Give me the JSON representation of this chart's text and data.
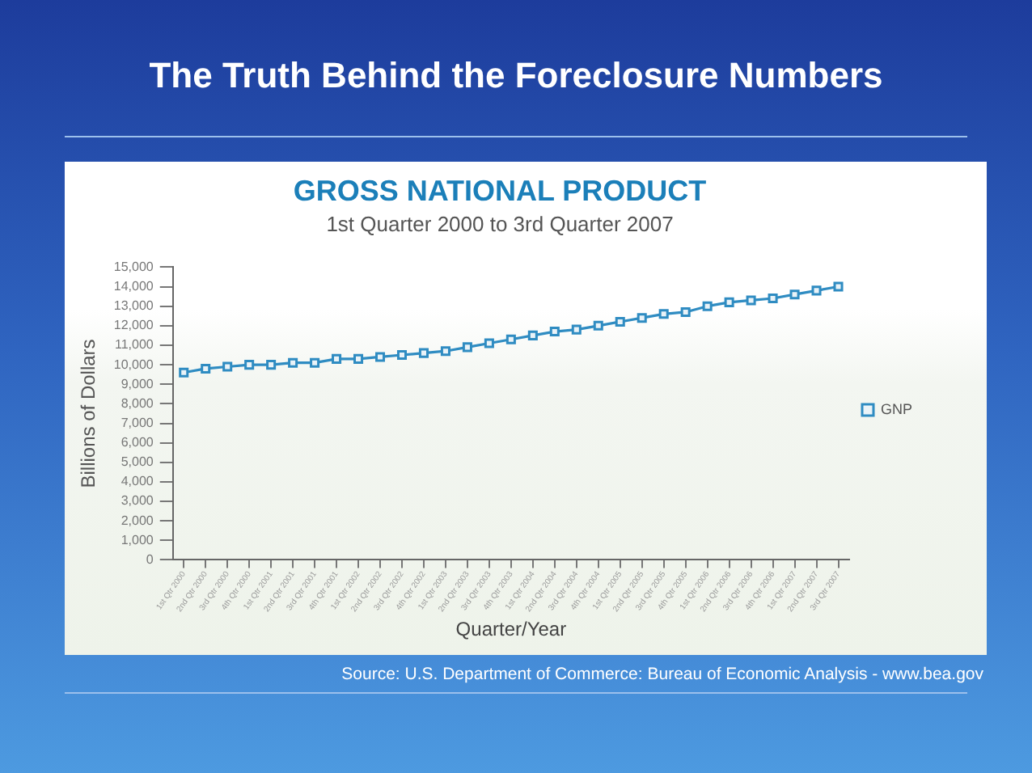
{
  "chart_data": {
    "type": "line",
    "title": "GROSS NATIONAL PRODUCT",
    "subtitle": "1st Quarter 2000 to 3rd Quarter 2007",
    "xlabel": "Quarter/Year",
    "ylabel": "Billions of Dollars",
    "annotations": [
      "The Truth Behind the Foreclosure Numbers",
      "Source: U.S. Department of Commerce: Bureau of Economic Analysis - www.bea.gov"
    ],
    "categories": [
      "1st Qtr 2000",
      "2nd Qtr 2000",
      "3rd Qtr 2000",
      "4th Qtr 2000",
      "1st Qtr 2001",
      "2nd Qtr 2001",
      "3rd Qtr 2001",
      "4th Qtr 2001",
      "1st Qtr 2002",
      "2nd Qtr 2002",
      "3rd Qtr 2002",
      "4th Qtr 2002",
      "1st Qtr 2003",
      "2nd Qtr 2003",
      "3rd Qtr 2003",
      "4th Qtr 2003",
      "1st Qtr 2004",
      "2nd Qtr 2004",
      "3rd Qtr 2004",
      "4th Qtr 2004",
      "1st Qtr 2005",
      "2nd Qtr 2005",
      "3rd Qtr 2005",
      "4th Qtr 2005",
      "1st Qtr 2006",
      "2nd Qtr 2006",
      "3rd Qtr 2006",
      "4th Qtr 2006",
      "1st Qtr 2007",
      "2nd Qtr 2007",
      "3rd Qtr 2007"
    ],
    "series": [
      {
        "name": "GNP",
        "color": "#2f8cc2",
        "values": [
          9600,
          9800,
          9900,
          10000,
          10000,
          10100,
          10100,
          10300,
          10300,
          10400,
          10500,
          10600,
          10700,
          10900,
          11100,
          11300,
          11500,
          11700,
          11800,
          12000,
          12200,
          12400,
          12600,
          12700,
          13000,
          13200,
          13300,
          13400,
          13600,
          13800,
          14000
        ]
      }
    ],
    "ylim": [
      0,
      15000
    ],
    "yticks": [
      0,
      {
        "value": 1000,
        "label": "1,000"
      },
      {
        "value": 2000,
        "label": "2,000"
      },
      {
        "value": 3000,
        "label": "3,000"
      },
      {
        "value": 4000,
        "label": "4,000"
      },
      {
        "value": 5000,
        "label": "5,000"
      },
      {
        "value": 6000,
        "label": "6,000"
      },
      {
        "value": 7000,
        "label": "7,000"
      },
      {
        "value": 8000,
        "label": "8,000"
      },
      {
        "value": 9000,
        "label": "9,000"
      },
      {
        "value": 10000,
        "label": "10,000"
      },
      {
        "value": 11000,
        "label": "11,000"
      },
      {
        "value": 12000,
        "label": "12,000"
      },
      {
        "value": 13000,
        "label": "13,000"
      },
      {
        "value": 14000,
        "label": "14,000"
      },
      {
        "value": 15000,
        "label": "15,000"
      }
    ],
    "legend": "right",
    "marker": "square",
    "line_style": "solid"
  }
}
